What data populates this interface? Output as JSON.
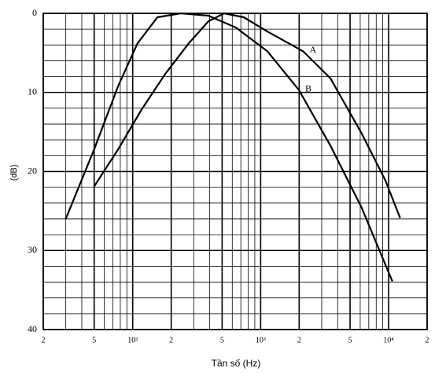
{
  "chart_data": {
    "type": "line",
    "xlabel": "Tần số (Hz)",
    "ylabel": "(dB)",
    "xscale": "log",
    "xlim": [
      20,
      20000
    ],
    "ylim": [
      40,
      0
    ],
    "grid": true,
    "xticks": [
      {
        "value": 20,
        "label": "2"
      },
      {
        "value": 50,
        "label": "5"
      },
      {
        "value": 100,
        "label": "10²"
      },
      {
        "value": 200,
        "label": "2"
      },
      {
        "value": 500,
        "label": "5"
      },
      {
        "value": 1000,
        "label": "10³"
      },
      {
        "value": 2000,
        "label": "2"
      },
      {
        "value": 5000,
        "label": "5"
      },
      {
        "value": 10000,
        "label": "10⁴"
      },
      {
        "value": 20000,
        "label": "2"
      }
    ],
    "yticks": [
      0,
      10,
      20,
      30,
      40
    ],
    "series": [
      {
        "name": "A",
        "color": "#000000",
        "x": [
          50,
          77,
          117,
          179,
          274,
          391,
          518,
          738,
          1130,
          2150,
          3500,
          6160,
          9420,
          12300
        ],
        "values": [
          21.9,
          17.2,
          12.2,
          7.7,
          3.8,
          1.0,
          0,
          0.5,
          2.3,
          4.8,
          8.2,
          15.2,
          21.1,
          25.9
        ]
      },
      {
        "name": "B",
        "color": "#000000",
        "x": [
          30,
          50,
          77,
          109,
          156,
          238,
          391,
          641,
          1130,
          1990,
          3500,
          6160,
          10700
        ],
        "values": [
          26,
          17.2,
          9.2,
          3.8,
          0.5,
          0,
          0.3,
          1.8,
          4.8,
          9.7,
          16.7,
          24.6,
          33.9
        ]
      }
    ]
  }
}
